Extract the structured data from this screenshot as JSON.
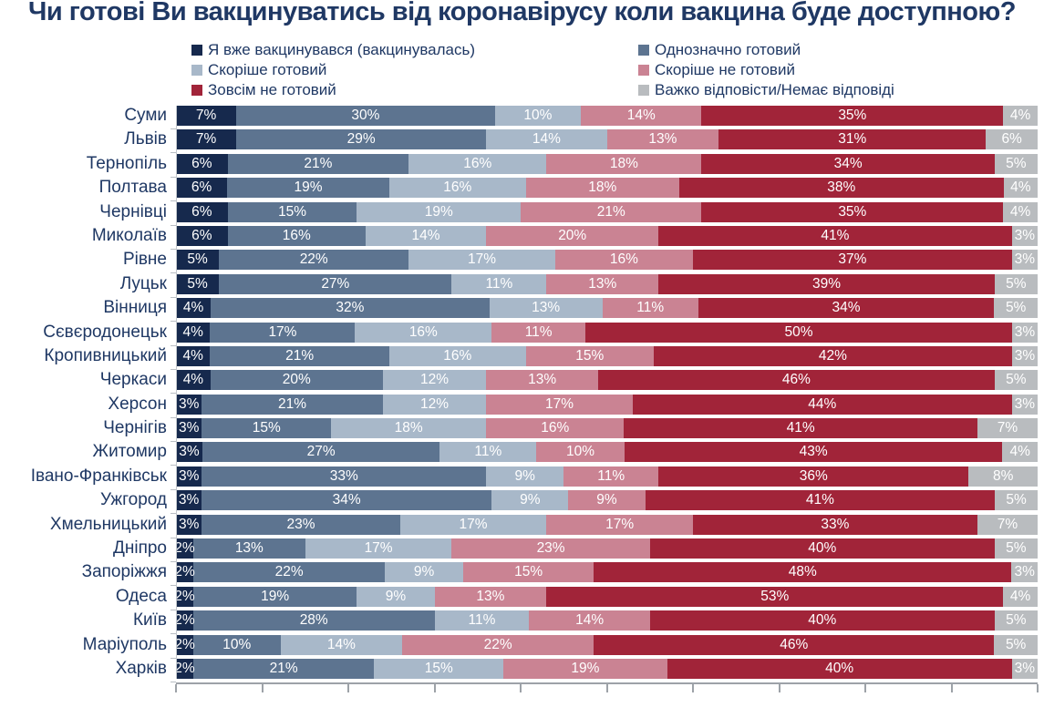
{
  "title": "Чи готові Ви вакцинуватись від коронавірусу коли вакцина буде доступною?",
  "chart_data": {
    "type": "bar",
    "stacked": true,
    "orientation": "horizontal",
    "unit": "%",
    "xlim": [
      0,
      100
    ],
    "axis_ticks": [
      0,
      10,
      20,
      30,
      40,
      50,
      60,
      70,
      80,
      90,
      100
    ],
    "grid": false,
    "legend_position": "top",
    "value_labels": "inside-white",
    "categories": [
      "Суми",
      "Львів",
      "Тернопіль",
      "Полтава",
      "Чернівці",
      "Миколаїв",
      "Рівне",
      "Луцьк",
      "Вінниця",
      "Сєвєродонецьк",
      "Кропивницький",
      "Черкаси",
      "Херсон",
      "Чернігів",
      "Житомир",
      "Івано-Франківськ",
      "Ужгород",
      "Хмельницький",
      "Дніпро",
      "Запоріжжя",
      "Одеса",
      "Київ",
      "Маріуполь",
      "Харків"
    ],
    "series": [
      {
        "name": "Я вже вакцинувався (вакцинувалась)",
        "color": "#16294d",
        "values": [
          7,
          7,
          6,
          6,
          6,
          6,
          5,
          5,
          4,
          4,
          4,
          4,
          3,
          3,
          3,
          3,
          3,
          3,
          2,
          2,
          2,
          2,
          2,
          2
        ]
      },
      {
        "name": "Однозначно готовий",
        "color": "#5d7490",
        "values": [
          30,
          29,
          21,
          19,
          15,
          16,
          22,
          27,
          32,
          17,
          21,
          20,
          21,
          15,
          27,
          33,
          34,
          23,
          13,
          22,
          19,
          28,
          10,
          21
        ]
      },
      {
        "name": "Скоріше готовий",
        "color": "#a8b8c9",
        "values": [
          10,
          14,
          16,
          16,
          19,
          14,
          17,
          11,
          13,
          16,
          16,
          12,
          12,
          18,
          11,
          9,
          9,
          17,
          17,
          9,
          9,
          11,
          14,
          15
        ]
      },
      {
        "name": "Скоріше не готовий",
        "color": "#ca8393",
        "values": [
          14,
          13,
          18,
          18,
          21,
          20,
          16,
          13,
          11,
          11,
          15,
          13,
          17,
          16,
          10,
          11,
          9,
          17,
          23,
          15,
          13,
          14,
          22,
          19
        ]
      },
      {
        "name": "Зовсім не готовий",
        "color": "#a12439",
        "values": [
          35,
          31,
          34,
          38,
          35,
          41,
          37,
          39,
          34,
          50,
          42,
          46,
          44,
          41,
          43,
          36,
          41,
          33,
          40,
          48,
          53,
          40,
          46,
          40
        ]
      },
      {
        "name": "Важко відповісти/Немає відповіді",
        "color": "#b9bcbf",
        "values": [
          4,
          6,
          5,
          4,
          4,
          3,
          3,
          5,
          5,
          3,
          3,
          5,
          3,
          7,
          4,
          8,
          5,
          7,
          5,
          3,
          4,
          5,
          5,
          3
        ]
      }
    ]
  }
}
